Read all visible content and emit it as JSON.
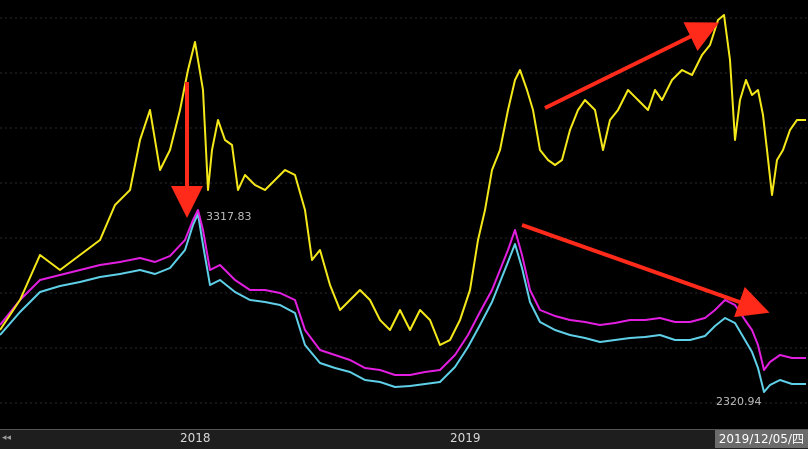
{
  "chart_data": {
    "type": "line",
    "title": "",
    "xlabel": "",
    "ylabel": "",
    "x_tick_labels": [
      "2018",
      "2019"
    ],
    "current_date": "2019/12/05/四",
    "annotations": {
      "peak_value": "3317.83",
      "low_value": "2320.94"
    },
    "series": [
      {
        "color": "#f4e81a",
        "points": [
          [
            0,
            330
          ],
          [
            20,
            300
          ],
          [
            40,
            255
          ],
          [
            60,
            270
          ],
          [
            80,
            255
          ],
          [
            100,
            240
          ],
          [
            115,
            205
          ],
          [
            130,
            190
          ],
          [
            140,
            140
          ],
          [
            150,
            110
          ],
          [
            160,
            170
          ],
          [
            170,
            150
          ],
          [
            180,
            110
          ],
          [
            188,
            70
          ],
          [
            195,
            42
          ],
          [
            203,
            90
          ],
          [
            208,
            190
          ],
          [
            212,
            150
          ],
          [
            218,
            120
          ],
          [
            225,
            140
          ],
          [
            232,
            145
          ],
          [
            238,
            190
          ],
          [
            245,
            175
          ],
          [
            255,
            185
          ],
          [
            265,
            190
          ],
          [
            275,
            180
          ],
          [
            285,
            170
          ],
          [
            295,
            175
          ],
          [
            305,
            210
          ],
          [
            312,
            260
          ],
          [
            320,
            250
          ],
          [
            330,
            285
          ],
          [
            340,
            310
          ],
          [
            350,
            300
          ],
          [
            360,
            290
          ],
          [
            370,
            300
          ],
          [
            380,
            320
          ],
          [
            390,
            330
          ],
          [
            400,
            310
          ],
          [
            410,
            330
          ],
          [
            420,
            310
          ],
          [
            430,
            320
          ],
          [
            440,
            345
          ],
          [
            450,
            340
          ],
          [
            460,
            320
          ],
          [
            470,
            290
          ],
          [
            478,
            240
          ],
          [
            485,
            210
          ],
          [
            492,
            170
          ],
          [
            500,
            150
          ],
          [
            508,
            110
          ],
          [
            515,
            80
          ],
          [
            520,
            70
          ],
          [
            527,
            90
          ],
          [
            533,
            110
          ],
          [
            540,
            150
          ],
          [
            548,
            160
          ],
          [
            555,
            165
          ],
          [
            562,
            160
          ],
          [
            570,
            130
          ],
          [
            578,
            110
          ],
          [
            585,
            100
          ],
          [
            595,
            110
          ],
          [
            603,
            150
          ],
          [
            610,
            120
          ],
          [
            618,
            110
          ],
          [
            628,
            90
          ],
          [
            638,
            100
          ],
          [
            648,
            110
          ],
          [
            655,
            90
          ],
          [
            662,
            100
          ],
          [
            672,
            80
          ],
          [
            682,
            70
          ],
          [
            692,
            75
          ],
          [
            702,
            55
          ],
          [
            710,
            45
          ],
          [
            718,
            20
          ],
          [
            724,
            15
          ],
          [
            730,
            60
          ],
          [
            735,
            140
          ],
          [
            740,
            100
          ],
          [
            746,
            80
          ],
          [
            752,
            95
          ],
          [
            758,
            90
          ],
          [
            763,
            115
          ],
          [
            767,
            150
          ],
          [
            772,
            195
          ],
          [
            777,
            160
          ],
          [
            783,
            150
          ],
          [
            790,
            130
          ],
          [
            797,
            120
          ],
          [
            806,
            120
          ]
        ]
      },
      {
        "color": "#e21ee0",
        "points": [
          [
            0,
            325
          ],
          [
            20,
            300
          ],
          [
            40,
            280
          ],
          [
            60,
            275
          ],
          [
            80,
            270
          ],
          [
            100,
            265
          ],
          [
            120,
            262
          ],
          [
            140,
            258
          ],
          [
            155,
            262
          ],
          [
            170,
            256
          ],
          [
            185,
            240
          ],
          [
            193,
            220
          ],
          [
            198,
            210
          ],
          [
            203,
            230
          ],
          [
            210,
            270
          ],
          [
            220,
            265
          ],
          [
            235,
            280
          ],
          [
            250,
            290
          ],
          [
            265,
            290
          ],
          [
            280,
            293
          ],
          [
            295,
            300
          ],
          [
            305,
            330
          ],
          [
            320,
            350
          ],
          [
            335,
            355
          ],
          [
            350,
            360
          ],
          [
            365,
            368
          ],
          [
            380,
            370
          ],
          [
            395,
            375
          ],
          [
            410,
            375
          ],
          [
            425,
            372
          ],
          [
            440,
            370
          ],
          [
            455,
            355
          ],
          [
            468,
            335
          ],
          [
            480,
            312
          ],
          [
            492,
            290
          ],
          [
            500,
            270
          ],
          [
            508,
            250
          ],
          [
            515,
            230
          ],
          [
            522,
            255
          ],
          [
            530,
            290
          ],
          [
            540,
            310
          ],
          [
            555,
            316
          ],
          [
            570,
            320
          ],
          [
            585,
            322
          ],
          [
            600,
            325
          ],
          [
            615,
            323
          ],
          [
            630,
            320
          ],
          [
            645,
            320
          ],
          [
            660,
            318
          ],
          [
            675,
            322
          ],
          [
            690,
            322
          ],
          [
            705,
            318
          ],
          [
            715,
            310
          ],
          [
            725,
            300
          ],
          [
            735,
            305
          ],
          [
            745,
            320
          ],
          [
            752,
            330
          ],
          [
            758,
            345
          ],
          [
            764,
            370
          ],
          [
            770,
            362
          ],
          [
            780,
            355
          ],
          [
            792,
            358
          ],
          [
            806,
            358
          ]
        ]
      },
      {
        "color": "#5fd0e8",
        "points": [
          [
            0,
            335
          ],
          [
            20,
            312
          ],
          [
            40,
            292
          ],
          [
            60,
            286
          ],
          [
            80,
            282
          ],
          [
            100,
            277
          ],
          [
            120,
            274
          ],
          [
            140,
            270
          ],
          [
            155,
            274
          ],
          [
            170,
            268
          ],
          [
            185,
            250
          ],
          [
            193,
            225
          ],
          [
            198,
            214
          ],
          [
            203,
            245
          ],
          [
            210,
            285
          ],
          [
            220,
            280
          ],
          [
            235,
            292
          ],
          [
            250,
            300
          ],
          [
            265,
            302
          ],
          [
            280,
            305
          ],
          [
            295,
            313
          ],
          [
            305,
            345
          ],
          [
            320,
            363
          ],
          [
            335,
            368
          ],
          [
            350,
            372
          ],
          [
            365,
            380
          ],
          [
            380,
            382
          ],
          [
            395,
            387
          ],
          [
            410,
            386
          ],
          [
            425,
            384
          ],
          [
            440,
            382
          ],
          [
            455,
            367
          ],
          [
            468,
            347
          ],
          [
            480,
            325
          ],
          [
            492,
            302
          ],
          [
            500,
            282
          ],
          [
            508,
            262
          ],
          [
            515,
            244
          ],
          [
            522,
            268
          ],
          [
            530,
            302
          ],
          [
            540,
            322
          ],
          [
            555,
            330
          ],
          [
            570,
            335
          ],
          [
            585,
            338
          ],
          [
            600,
            342
          ],
          [
            615,
            340
          ],
          [
            630,
            338
          ],
          [
            645,
            337
          ],
          [
            660,
            335
          ],
          [
            675,
            340
          ],
          [
            690,
            340
          ],
          [
            705,
            336
          ],
          [
            715,
            326
          ],
          [
            725,
            318
          ],
          [
            735,
            323
          ],
          [
            745,
            340
          ],
          [
            752,
            352
          ],
          [
            758,
            368
          ],
          [
            764,
            392
          ],
          [
            770,
            385
          ],
          [
            780,
            380
          ],
          [
            792,
            384
          ],
          [
            806,
            384
          ]
        ]
      }
    ]
  }
}
